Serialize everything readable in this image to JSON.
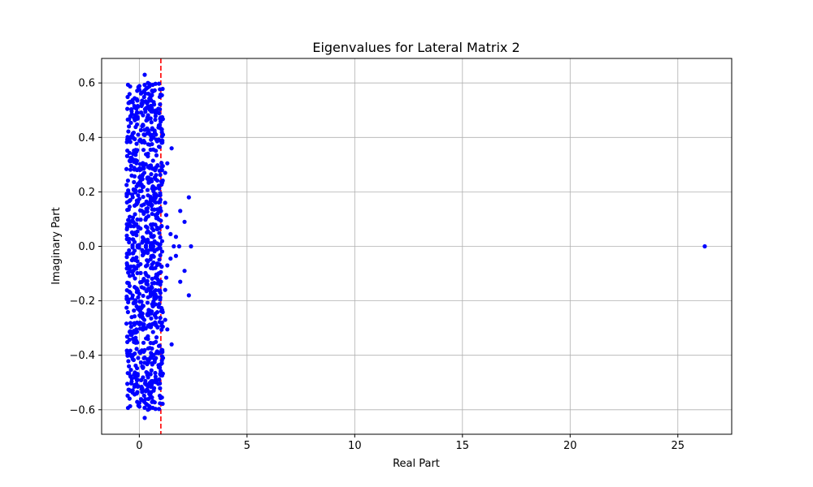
{
  "chart_data": {
    "type": "scatter",
    "title": "Eigenvalues for Lateral Matrix 2",
    "xlabel": "Real Part",
    "ylabel": "Imaginary Part",
    "xlim": [
      -1.75,
      27.5
    ],
    "ylim": [
      -0.69,
      0.69
    ],
    "x_ticks": [
      0,
      5,
      10,
      15,
      20,
      25
    ],
    "y_ticks": [
      -0.6,
      -0.4,
      -0.2,
      0.0,
      0.2,
      0.4,
      0.6
    ],
    "x_tick_labels": [
      "0",
      "5",
      "10",
      "15",
      "20",
      "25"
    ],
    "y_tick_labels": [
      "−0.6",
      "−0.4",
      "−0.2",
      "0.0",
      "0.2",
      "0.4",
      "0.6"
    ],
    "grid": true,
    "marker_color": "#0000ff",
    "reference_line": {
      "orientation": "vertical",
      "x": 1.0,
      "color": "#ff0000",
      "style": "dashed"
    },
    "series": [
      {
        "cluster": {
          "x_range": [
            -0.6,
            1.1
          ],
          "y_range": [
            -0.63,
            0.63
          ],
          "count": 900
        },
        "points": [
          [
            0.25,
            0.63
          ],
          [
            0.25,
            -0.63
          ],
          [
            0.4,
            0.6
          ],
          [
            0.4,
            -0.6
          ],
          [
            1.05,
            0.555
          ],
          [
            1.05,
            -0.555
          ],
          [
            1.1,
            0.41
          ],
          [
            1.1,
            -0.41
          ],
          [
            1.2,
            0.27
          ],
          [
            1.2,
            -0.27
          ],
          [
            1.3,
            0.305
          ],
          [
            1.3,
            -0.305
          ],
          [
            1.5,
            0.36
          ],
          [
            1.5,
            -0.36
          ],
          [
            1.2,
            0.16
          ],
          [
            1.2,
            -0.16
          ],
          [
            1.25,
            0.115
          ],
          [
            1.25,
            -0.115
          ],
          [
            1.3,
            0.07
          ],
          [
            1.3,
            -0.07
          ],
          [
            1.45,
            0.045
          ],
          [
            1.45,
            -0.045
          ],
          [
            1.7,
            0.035
          ],
          [
            1.7,
            -0.035
          ],
          [
            1.6,
            0.0
          ],
          [
            1.85,
            0.0
          ],
          [
            2.4,
            0.0
          ],
          [
            1.9,
            0.13
          ],
          [
            1.9,
            -0.13
          ],
          [
            2.1,
            0.09
          ],
          [
            2.1,
            -0.09
          ],
          [
            2.3,
            0.18
          ],
          [
            2.3,
            -0.18
          ],
          [
            26.25,
            0.0
          ]
        ]
      }
    ]
  }
}
